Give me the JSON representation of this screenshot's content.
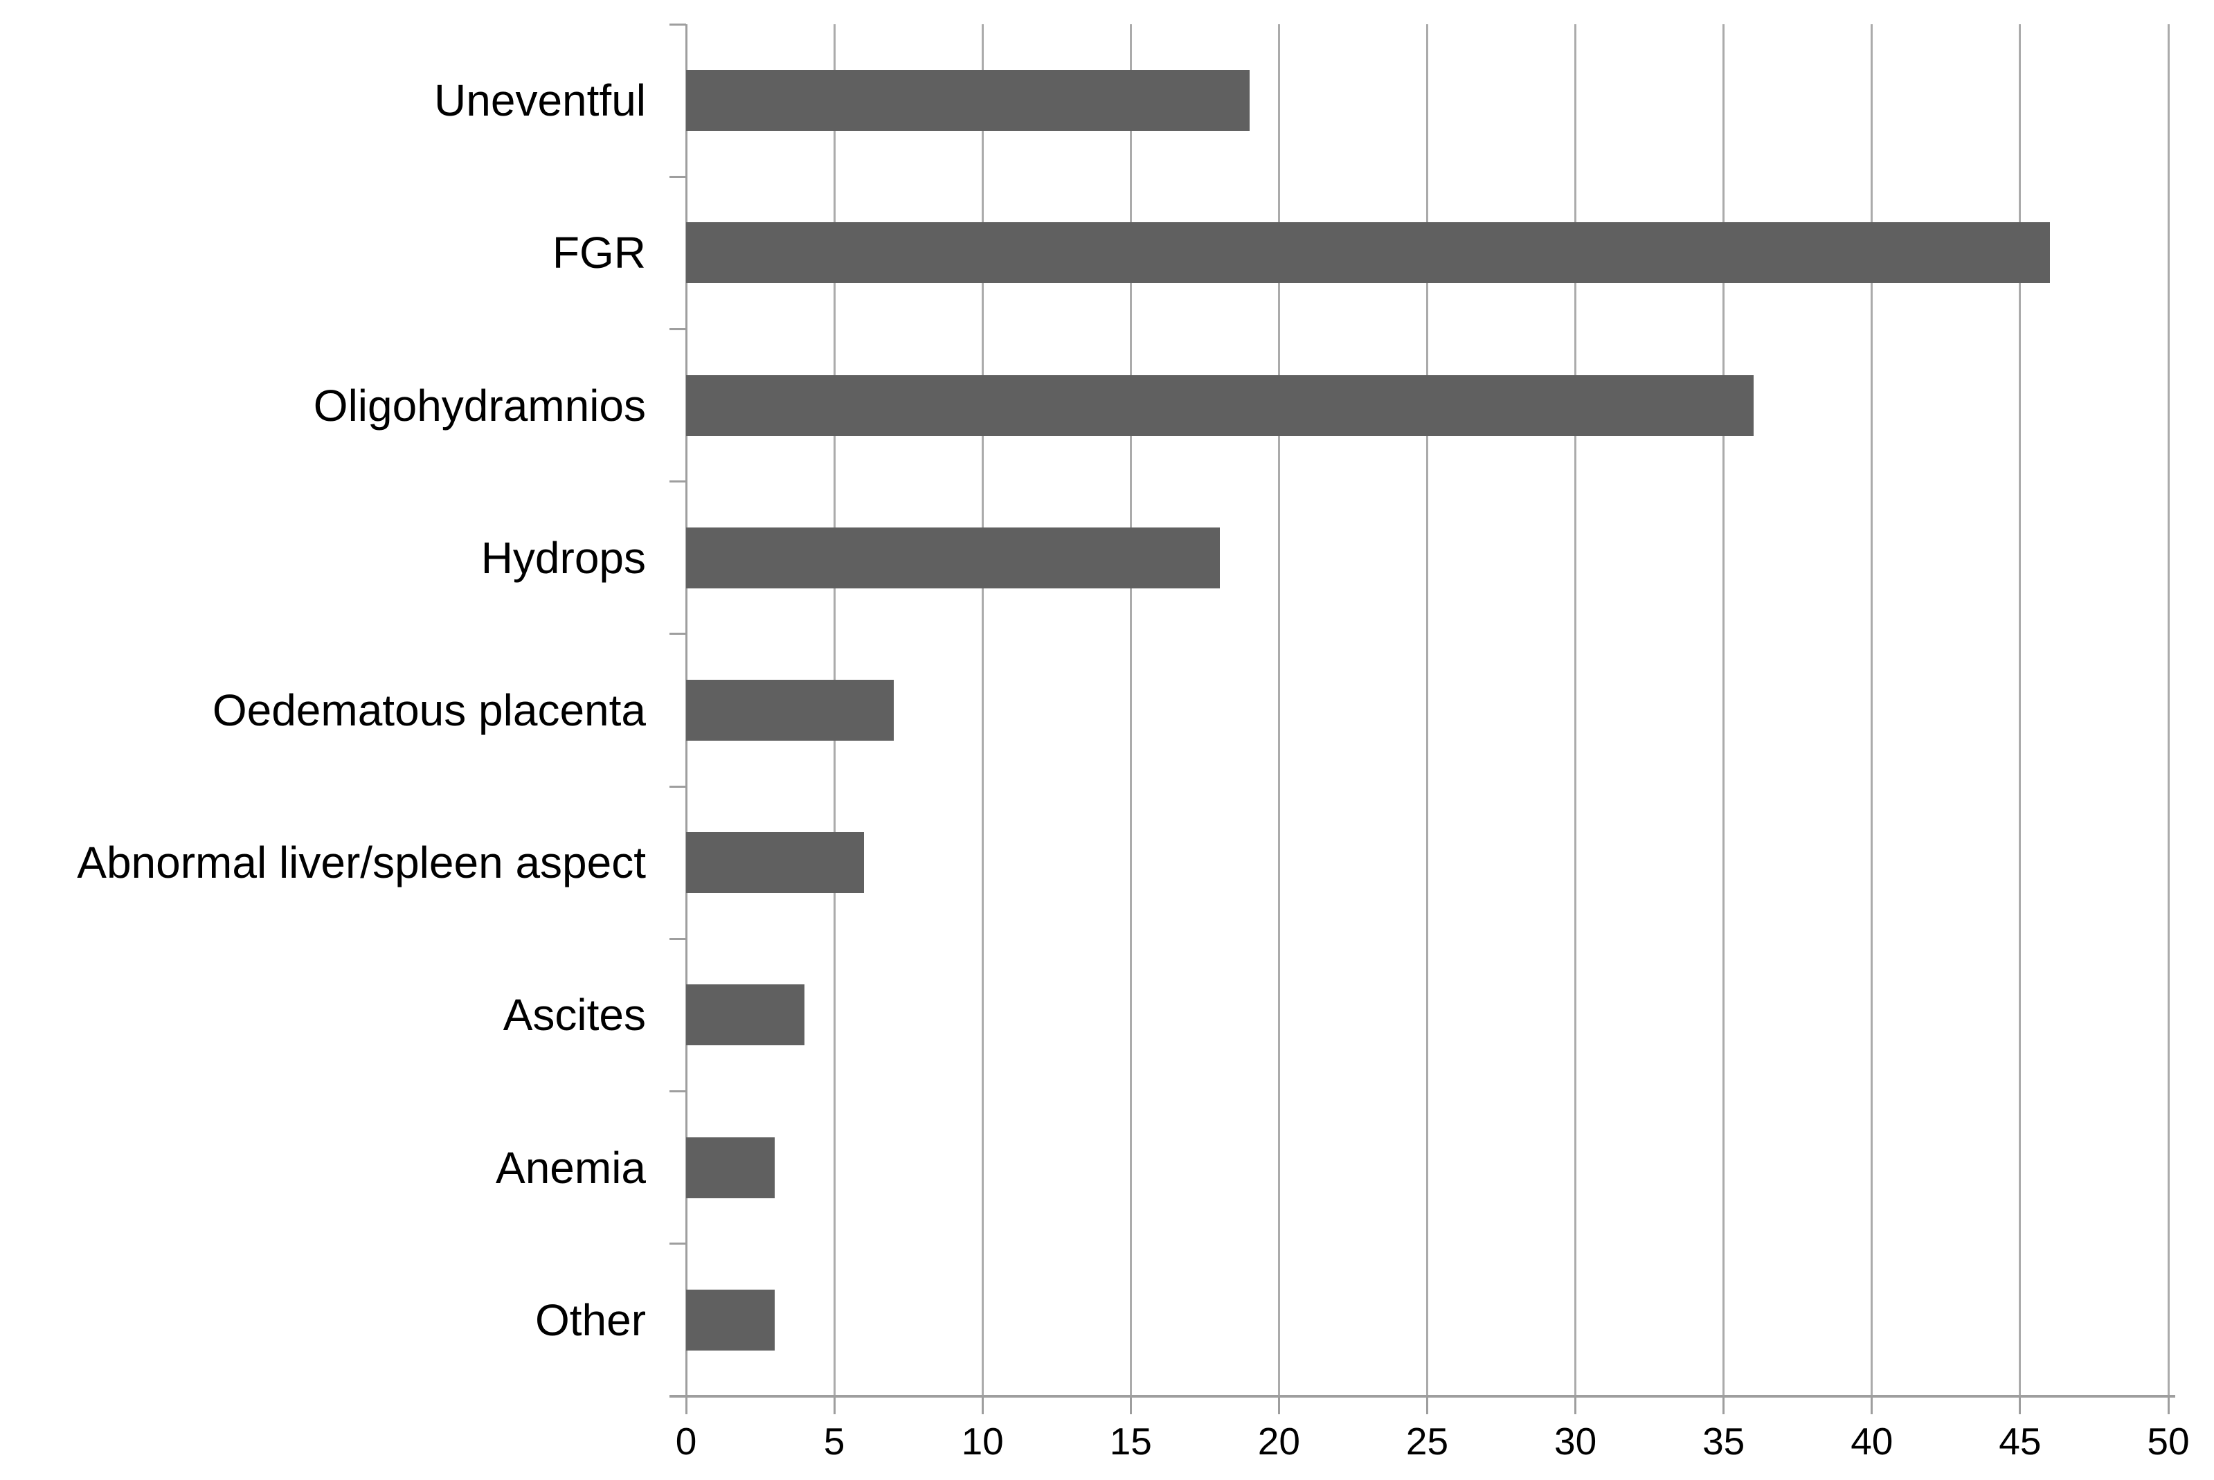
{
  "figure": {
    "title": "",
    "background": "#ffffff"
  },
  "chart_data": {
    "type": "bar",
    "orientation": "horizontal",
    "title": "",
    "xlabel": "",
    "ylabel": "",
    "categories": [
      "Uneventful",
      "FGR",
      "Oligohydramnios",
      "Hydrops",
      "Oedematous placenta",
      "Abnormal liver/spleen aspect",
      "Ascites",
      "Anemia",
      "Other"
    ],
    "values": [
      19,
      46,
      36,
      18,
      7,
      6,
      4,
      3,
      3
    ],
    "xlim": [
      0,
      50
    ],
    "x_ticks": [
      0,
      5,
      10,
      15,
      20,
      25,
      30,
      35,
      40,
      45,
      50
    ],
    "grid": "vertical-gridlines-on",
    "legend": "none",
    "bar_color": "#606060",
    "gridline_color": "#ababab",
    "axis_color": "#9e9e9e",
    "text_color": "#000000"
  }
}
